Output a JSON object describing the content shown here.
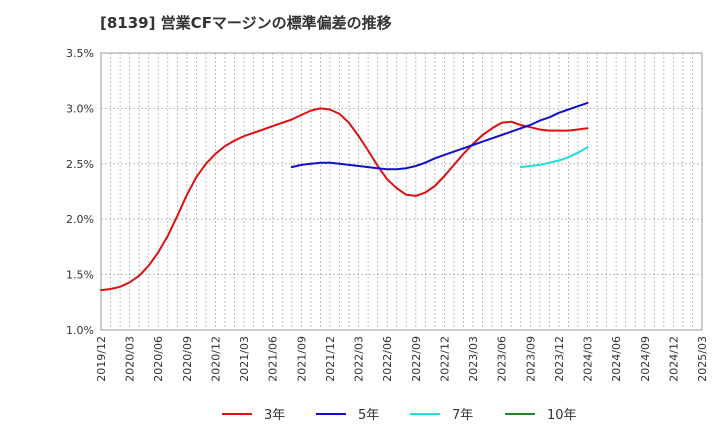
{
  "chart_data": {
    "type": "line",
    "title": "[8139]  営業CFマージンの標準偏差の推移",
    "xlabel": "",
    "ylabel": "",
    "ylim": [
      0.01,
      0.035
    ],
    "y_ticks": [
      "1.0%",
      "1.5%",
      "2.0%",
      "2.5%",
      "3.0%",
      "3.5%"
    ],
    "x_ticks": [
      "2019/12",
      "2020/03",
      "2020/06",
      "2020/09",
      "2020/12",
      "2021/03",
      "2021/06",
      "2021/09",
      "2021/12",
      "2022/03",
      "2022/06",
      "2022/09",
      "2022/12",
      "2023/03",
      "2023/06",
      "2023/09",
      "2023/12",
      "2024/03",
      "2024/06",
      "2024/09",
      "2024/12",
      "2025/03"
    ],
    "grid": true,
    "legend_position": "bottom",
    "series": [
      {
        "name": "3年",
        "color": "#dd1111",
        "points": [
          [
            "2019/12",
            0.0136
          ],
          [
            "2020/01",
            0.0137
          ],
          [
            "2020/02",
            0.0139
          ],
          [
            "2020/03",
            0.0143
          ],
          [
            "2020/04",
            0.0149
          ],
          [
            "2020/05",
            0.0158
          ],
          [
            "2020/06",
            0.017
          ],
          [
            "2020/07",
            0.0185
          ],
          [
            "2020/08",
            0.0203
          ],
          [
            "2020/09",
            0.0222
          ],
          [
            "2020/10",
            0.0238
          ],
          [
            "2020/11",
            0.025
          ],
          [
            "2020/12",
            0.0259
          ],
          [
            "2021/01",
            0.0266
          ],
          [
            "2021/02",
            0.0271
          ],
          [
            "2021/03",
            0.0275
          ],
          [
            "2021/04",
            0.0278
          ],
          [
            "2021/05",
            0.0281
          ],
          [
            "2021/06",
            0.0284
          ],
          [
            "2021/07",
            0.0287
          ],
          [
            "2021/08",
            0.029
          ],
          [
            "2021/09",
            0.0294
          ],
          [
            "2021/10",
            0.0298
          ],
          [
            "2021/11",
            0.03
          ],
          [
            "2021/12",
            0.0299
          ],
          [
            "2022/01",
            0.0295
          ],
          [
            "2022/02",
            0.0287
          ],
          [
            "2022/03",
            0.0275
          ],
          [
            "2022/04",
            0.0262
          ],
          [
            "2022/05",
            0.0248
          ],
          [
            "2022/06",
            0.0236
          ],
          [
            "2022/07",
            0.0228
          ],
          [
            "2022/08",
            0.0222
          ],
          [
            "2022/09",
            0.0221
          ],
          [
            "2022/10",
            0.0224
          ],
          [
            "2022/11",
            0.023
          ],
          [
            "2022/12",
            0.0239
          ],
          [
            "2023/01",
            0.0249
          ],
          [
            "2023/02",
            0.0259
          ],
          [
            "2023/03",
            0.0268
          ],
          [
            "2023/04",
            0.0276
          ],
          [
            "2023/05",
            0.0282
          ],
          [
            "2023/06",
            0.0287
          ],
          [
            "2023/07",
            0.0288
          ],
          [
            "2023/08",
            0.0285
          ],
          [
            "2023/09",
            0.0283
          ],
          [
            "2023/10",
            0.0281
          ],
          [
            "2023/11",
            0.028
          ],
          [
            "2023/12",
            0.028
          ],
          [
            "2024/01",
            0.028
          ],
          [
            "2024/02",
            0.0281
          ],
          [
            "2024/03",
            0.0282
          ]
        ]
      },
      {
        "name": "5年",
        "color": "#1111cc",
        "points": [
          [
            "2021/08",
            0.0247
          ],
          [
            "2021/09",
            0.0249
          ],
          [
            "2021/10",
            0.025
          ],
          [
            "2021/11",
            0.0251
          ],
          [
            "2021/12",
            0.0251
          ],
          [
            "2022/01",
            0.025
          ],
          [
            "2022/02",
            0.0249
          ],
          [
            "2022/03",
            0.0248
          ],
          [
            "2022/04",
            0.0247
          ],
          [
            "2022/05",
            0.0246
          ],
          [
            "2022/06",
            0.0245
          ],
          [
            "2022/07",
            0.0245
          ],
          [
            "2022/08",
            0.0246
          ],
          [
            "2022/09",
            0.0248
          ],
          [
            "2022/10",
            0.0251
          ],
          [
            "2022/11",
            0.0255
          ],
          [
            "2022/12",
            0.0258
          ],
          [
            "2023/01",
            0.0261
          ],
          [
            "2023/02",
            0.0264
          ],
          [
            "2023/03",
            0.0267
          ],
          [
            "2023/04",
            0.027
          ],
          [
            "2023/05",
            0.0273
          ],
          [
            "2023/06",
            0.0276
          ],
          [
            "2023/07",
            0.0279
          ],
          [
            "2023/08",
            0.0282
          ],
          [
            "2023/09",
            0.0285
          ],
          [
            "2023/10",
            0.0289
          ],
          [
            "2023/11",
            0.0292
          ],
          [
            "2023/12",
            0.0296
          ],
          [
            "2024/01",
            0.0299
          ],
          [
            "2024/02",
            0.0302
          ],
          [
            "2024/03",
            0.0305
          ]
        ]
      },
      {
        "name": "7年",
        "color": "#22dddd",
        "points": [
          [
            "2023/08",
            0.0247
          ],
          [
            "2023/09",
            0.0248
          ],
          [
            "2023/10",
            0.0249
          ],
          [
            "2023/11",
            0.0251
          ],
          [
            "2023/12",
            0.0253
          ],
          [
            "2024/01",
            0.0256
          ],
          [
            "2024/02",
            0.026
          ],
          [
            "2024/03",
            0.0265
          ]
        ]
      },
      {
        "name": "10年",
        "color": "#228822",
        "points": []
      }
    ]
  }
}
